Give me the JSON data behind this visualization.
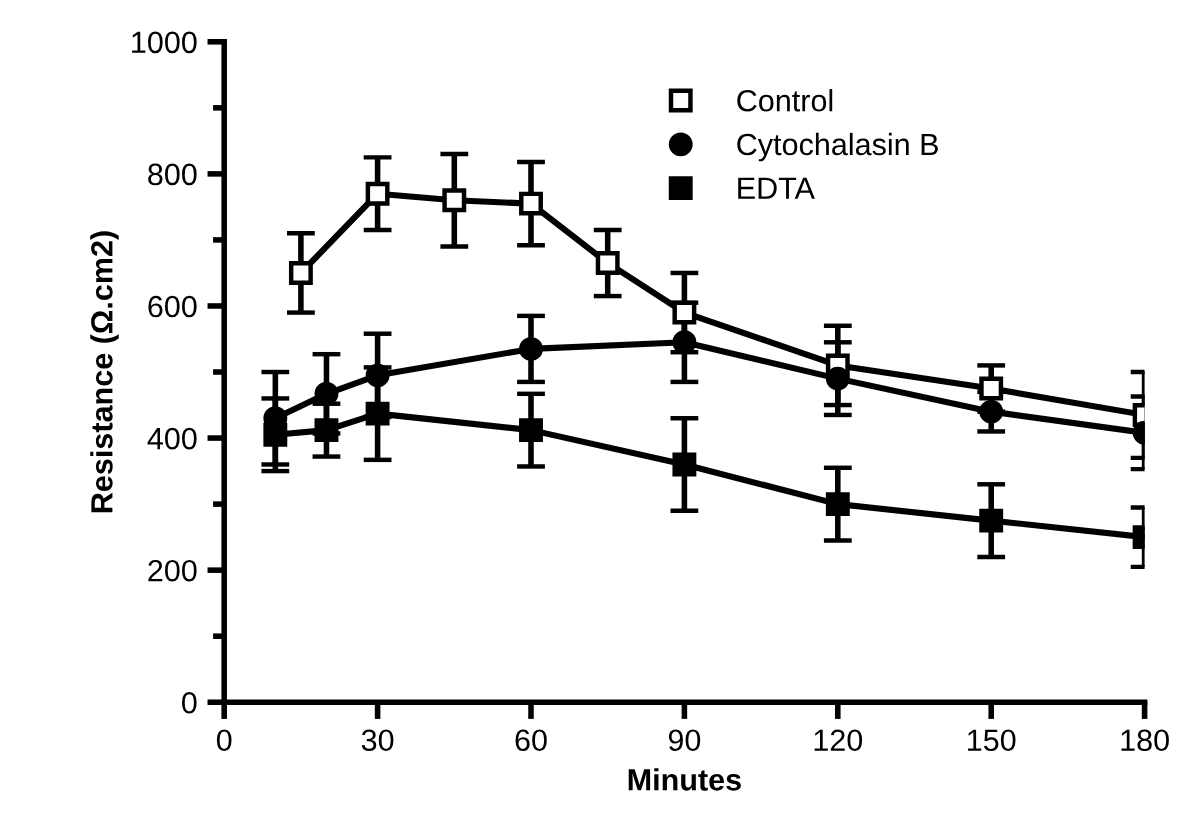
{
  "chart_data": {
    "type": "line",
    "xlabel": "Minutes",
    "ylabel": "Resistance (Ω.cm2)",
    "xlim": [
      0,
      180
    ],
    "xticks": [
      0,
      30,
      60,
      90,
      120,
      150,
      180
    ],
    "ylim": [
      0,
      1000
    ],
    "yticks": [
      0,
      200,
      400,
      600,
      800,
      1000
    ],
    "grid": false,
    "legend": "top",
    "line_style": "solid",
    "series": [
      {
        "name": "Control",
        "color": "#000000",
        "marker": "square",
        "x": [
          15,
          30,
          45,
          60,
          75,
          90,
          120,
          150,
          180
        ],
        "values": [
          650,
          770,
          760,
          755,
          665,
          590,
          510,
          475,
          435
        ],
        "errors": [
          60,
          55,
          70,
          63,
          50,
          60,
          60,
          35,
          65
        ]
      },
      {
        "name": "Cytochalasin B",
        "color": "#000000",
        "marker": "circle",
        "x": [
          10,
          20,
          30,
          60,
          90,
          120,
          150,
          180
        ],
        "values": [
          430,
          467,
          495,
          535,
          545,
          490,
          440,
          408
        ],
        "errors": [
          70,
          60,
          63,
          50,
          60,
          55,
          30,
          55
        ]
      },
      {
        "name": "EDTA",
        "color": "#000000",
        "marker": "square",
        "x": [
          10,
          20,
          30,
          60,
          90,
          120,
          150,
          180
        ],
        "values": [
          405,
          412,
          437,
          412,
          360,
          300,
          275,
          250
        ],
        "errors": [
          55,
          40,
          70,
          55,
          70,
          55,
          55,
          45
        ]
      }
    ]
  }
}
